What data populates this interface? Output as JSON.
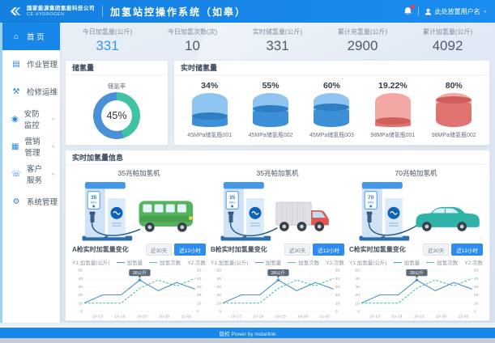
{
  "header": {
    "logo_line1": "国家能源集团氢能科技公司",
    "logo_line2": "CE HYDROGEN",
    "app_title": "加氢站控操作系统（如皋）",
    "has_notification_dot": true,
    "username": "此处放置用户名"
  },
  "sidebar": {
    "items": [
      {
        "label": "首 页",
        "icon": "home",
        "active": true
      },
      {
        "label": "作业管理",
        "icon": "clipboard"
      },
      {
        "label": "检修运维",
        "icon": "wrench"
      },
      {
        "label": "安防监控",
        "icon": "shield",
        "expandable": true
      },
      {
        "label": "营销管理",
        "icon": "bar-chart",
        "expandable": true
      },
      {
        "label": "客户服务",
        "icon": "customer-service",
        "expandable": true
      },
      {
        "label": "系统管理",
        "icon": "gear"
      }
    ]
  },
  "stats": [
    {
      "label": "今日加氢量(公斤)",
      "value": "331"
    },
    {
      "label": "今日加氢次数(次)",
      "value": "10"
    },
    {
      "label": "实时储氢量(公斤)",
      "value": "331"
    },
    {
      "label": "累计充氢量(公斤)",
      "value": "2900"
    },
    {
      "label": "累计加氢量(公斤)",
      "value": "4092"
    }
  ],
  "storage_panel": {
    "title": "储氢量",
    "gauge_label": "储氢率",
    "gauge_value": "45%",
    "gauge_percent": 45,
    "colors": {
      "primary": "#4a90d9",
      "secondary": "#3fc3a4"
    }
  },
  "realtime_storage_panel": {
    "title": "实时储氢量",
    "tanks": [
      {
        "percent": "34%",
        "value": 34,
        "label": "45MPa储氢瓶001",
        "color": "blue"
      },
      {
        "percent": "55%",
        "value": 55,
        "label": "45MPa储氢瓶002",
        "color": "blue"
      },
      {
        "percent": "60%",
        "value": 60,
        "label": "45MPa储氢瓶003",
        "color": "blue"
      },
      {
        "percent": "19.22%",
        "value": 19.22,
        "label": "98MPa储氢瓶001",
        "color": "red"
      },
      {
        "percent": "80%",
        "value": 80,
        "label": "98MPa储氢瓶002",
        "color": "red"
      }
    ]
  },
  "dispenser_panel": {
    "title": "实时加氢量信息",
    "range_buttons": {
      "inactive": "近30天",
      "active": "近12小时"
    },
    "columns": [
      {
        "machine": "35兆帕加氢机",
        "placard_value": "35",
        "placard_unit": "MPa",
        "vehicle": "bus",
        "chart_title": "A枪实时加氢量变化"
      },
      {
        "machine": "35兆帕加氢机",
        "placard_value": "35",
        "placard_unit": "MPa",
        "vehicle": "truck",
        "chart_title": "B枪实时加氢量变化"
      },
      {
        "machine": "70兆帕加氢机",
        "placard_value": "70",
        "placard_unit": "MPa",
        "vehicle": "car",
        "chart_title": "C枪实时加氢量变化"
      }
    ]
  },
  "chart_data": [
    {
      "type": "line",
      "title": "A枪实时加氢量变化",
      "y1_label": "Y1:加氢量(公斤)",
      "y2_label": "Y2:次数",
      "ylim": [
        0,
        50
      ],
      "yticks": [
        0,
        10,
        20,
        30,
        40,
        50
      ],
      "xticks": [
        "10-13",
        "10-18",
        "10-23",
        "10-28",
        "11-02"
      ],
      "series": [
        {
          "name": "加氢量",
          "style": "solid",
          "color": "#4f93c8",
          "values": [
            10,
            20,
            20,
            38,
            25,
            35,
            27
          ]
        },
        {
          "name": "加氢次数",
          "style": "dashed",
          "color": "#4fc3a1",
          "values": [
            10,
            10,
            10,
            28,
            38,
            31,
            40
          ]
        }
      ],
      "annotation": {
        "series": 0,
        "index": 3,
        "label": "38公斤"
      }
    },
    {
      "type": "line",
      "title": "B枪实时加氢量变化",
      "y1_label": "Y1:加氢量(公斤)",
      "y2_label": "Y2:次数",
      "ylim": [
        0,
        50
      ],
      "yticks": [
        0,
        10,
        20,
        30,
        40,
        50
      ],
      "xticks": [
        "10-13",
        "10-18",
        "10-23",
        "10-28",
        "11-02"
      ],
      "series": [
        {
          "name": "加氢量",
          "style": "solid",
          "color": "#4f93c8",
          "values": [
            10,
            20,
            20,
            38,
            25,
            35,
            27
          ]
        },
        {
          "name": "加氢次数",
          "style": "dashed",
          "color": "#4fc3a1",
          "values": [
            10,
            10,
            10,
            28,
            38,
            31,
            40
          ]
        }
      ],
      "annotation": {
        "series": 0,
        "index": 3,
        "label": "38公斤"
      }
    },
    {
      "type": "line",
      "title": "C枪实时加氢量变化",
      "y1_label": "Y1:加氢量(公斤)",
      "y2_label": "Y2:次数",
      "ylim": [
        0,
        50
      ],
      "yticks": [
        0,
        10,
        20,
        30,
        40,
        50
      ],
      "xticks": [
        "10-13",
        "10-18",
        "10-23",
        "10-28",
        "11-02"
      ],
      "series": [
        {
          "name": "加氢量",
          "style": "solid",
          "color": "#4f93c8",
          "values": [
            10,
            20,
            20,
            38,
            25,
            35,
            27
          ]
        },
        {
          "name": "加氢次数",
          "style": "dashed",
          "color": "#4fc3a1",
          "values": [
            10,
            10,
            10,
            28,
            38,
            31,
            40
          ]
        }
      ],
      "annotation": {
        "series": 0,
        "index": 3,
        "label": "38公斤"
      }
    }
  ],
  "footer": {
    "text": "版权 Power by mstarlink"
  }
}
